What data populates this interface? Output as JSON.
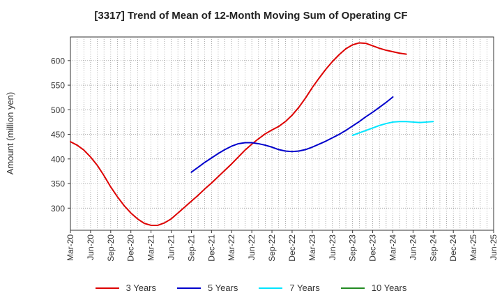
{
  "chart_data": {
    "type": "line",
    "title": "[3317]  Trend of Mean of 12-Month Moving Sum of Operating CF",
    "xlabel": "",
    "ylabel": "Amount (million yen)",
    "ylim": [
      255,
      648
    ],
    "yticks": [
      300,
      350,
      400,
      450,
      500,
      550,
      600
    ],
    "x_tick_labels": [
      "Mar-20",
      "Jun-20",
      "Sep-20",
      "Dec-20",
      "Mar-21",
      "Jun-21",
      "Sep-21",
      "Dec-21",
      "Mar-22",
      "Jun-22",
      "Sep-22",
      "Dec-22",
      "Mar-23",
      "Jun-23",
      "Sep-23",
      "Dec-23",
      "Mar-24",
      "Jun-24",
      "Sep-24",
      "Dec-24",
      "Mar-25",
      "Jun-25"
    ],
    "grid": true,
    "legend_position": "bottom",
    "series": [
      {
        "name": "3 Years",
        "color": "#dd0000",
        "start": "Mar-20",
        "values": [
          435,
          428,
          418,
          404,
          387,
          366,
          343,
          323,
          305,
          290,
          278,
          269,
          265,
          265,
          270,
          278,
          290,
          302,
          314,
          326,
          339,
          351,
          364,
          377,
          390,
          404,
          418,
          430,
          441,
          451,
          459,
          466,
          476,
          489,
          505,
          524,
          545,
          564,
          582,
          598,
          612,
          624,
          632,
          636,
          635,
          630,
          625,
          621,
          618,
          615,
          613
        ]
      },
      {
        "name": "5 Years",
        "color": "#0000cc",
        "start": "Sep-21",
        "values": [
          373,
          383,
          393,
          402,
          411,
          419,
          426,
          431,
          433,
          433,
          431,
          428,
          424,
          419,
          416,
          415,
          416,
          419,
          424,
          430,
          436,
          443,
          450,
          458,
          467,
          476,
          486,
          495,
          505,
          515,
          526
        ]
      },
      {
        "name": "7 Years",
        "color": "#00e5ff",
        "start": "Sep-23",
        "values": [
          448,
          453,
          458,
          463,
          468,
          472,
          475,
          476,
          476,
          475,
          474,
          475,
          476
        ]
      },
      {
        "name": "10 Years",
        "color": "#228b22",
        "start": "",
        "values": []
      }
    ]
  }
}
